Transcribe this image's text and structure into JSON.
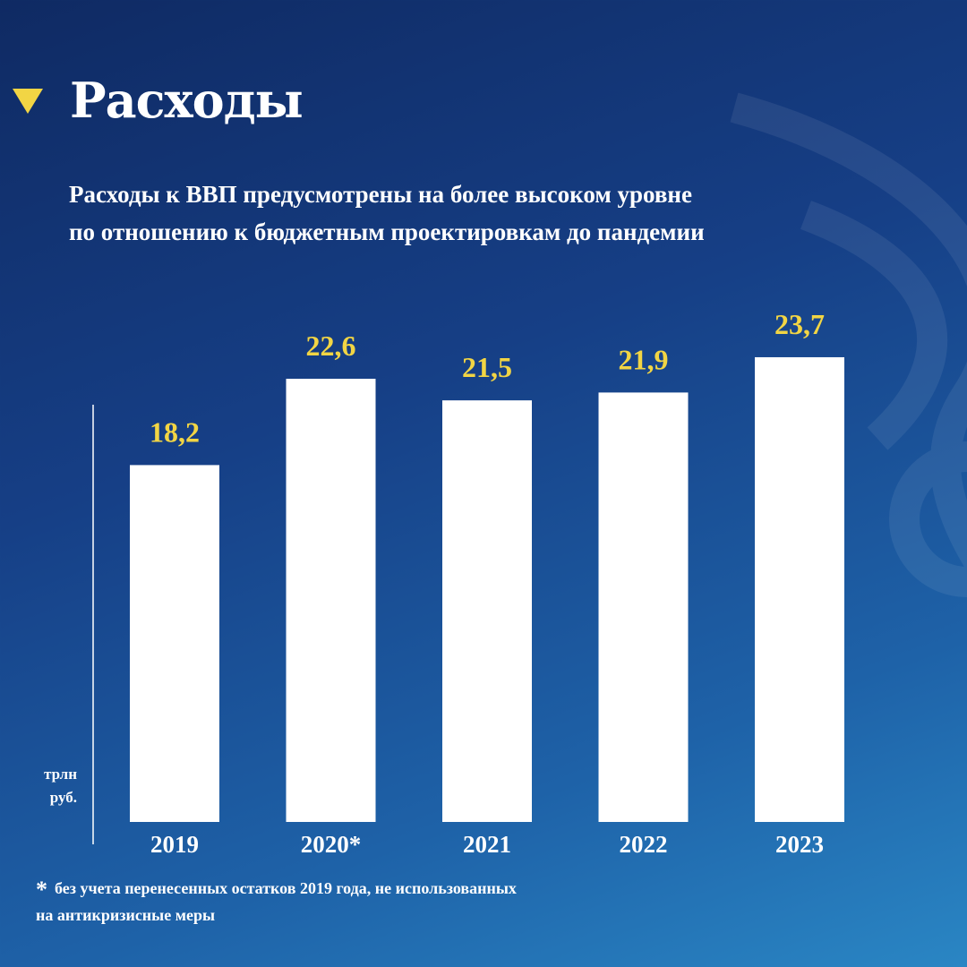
{
  "header": {
    "title": "Расходы",
    "icon": "triangle-down-icon",
    "accent_color": "#f2d544"
  },
  "subtitle_lines": [
    "Расходы к ВВП предусмотрены на более высоком уровне",
    "по отношению к бюджетным проектировкам до пандемии"
  ],
  "unit_lines": [
    "трлн",
    "руб."
  ],
  "footnote": {
    "marker": "*",
    "lines": [
      "без учета перенесенных остатков 2019 года, не использованных",
      "на антикризисные меры"
    ]
  },
  "chart_data": {
    "type": "bar",
    "categories": [
      "2019",
      "2020*",
      "2021",
      "2022",
      "2023"
    ],
    "values": [
      18.2,
      22.6,
      21.5,
      21.9,
      23.7
    ],
    "value_labels": [
      "18,2",
      "22,6",
      "21,5",
      "21,9",
      "23,7"
    ],
    "bar_color": "#ffffff",
    "label_color": "#f2d544",
    "grid": false
  }
}
